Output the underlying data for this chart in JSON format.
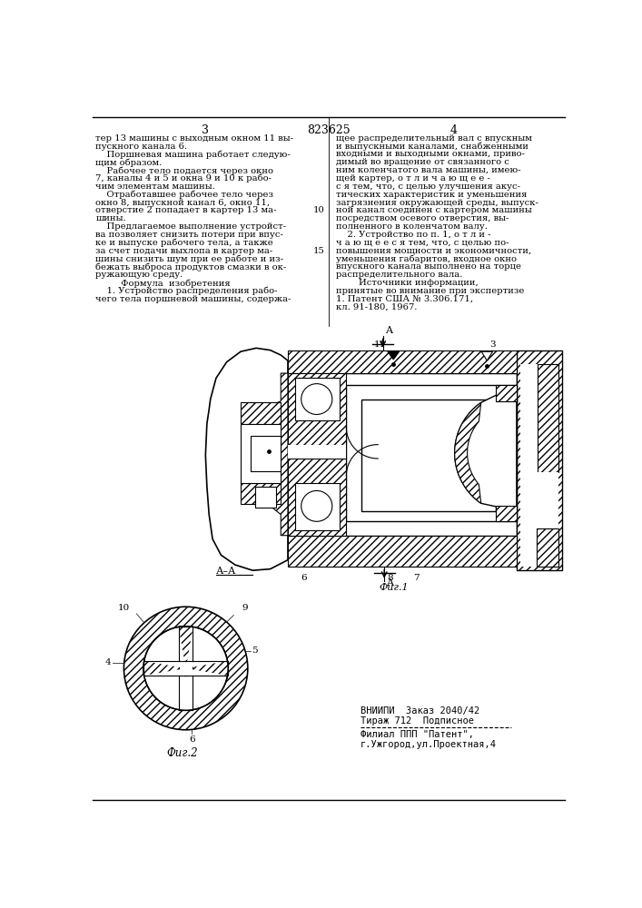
{
  "page_number_left": "3",
  "page_number_center": "823625",
  "page_number_right": "4",
  "bg_color": "#ffffff",
  "left_col": [
    "тер 13 машины с выходным окном 11 вы-",
    "пускного канала 6.",
    "    Поршневая машина работает следую-",
    "щим образом.",
    "    Рабочее тело подается через окно",
    "7, каналы 4 и 5 и окна 9 и 10 к рабо-",
    "чим элементам машины.",
    "    Отработавшее рабочее тело через",
    "окно 8, выпускной канал 6, окно 11,",
    "отверстие 2 попадает в картер 13 ма-",
    "шины.",
    "    Предлагаемое выполнение устройст-",
    "ва позволяет снизить потери при впус-",
    "ке и выпуске рабочего тела, а также",
    "за счет подачи выхлопа в картер ма-",
    "шины снизить шум при ее работе и из-",
    "бежать выброса продуктов смазки в ок-",
    "ружающую среду.",
    "         Формула  изобретения",
    "    1. Устройство распределения рабо-",
    "чего тела поршневой машины, содержа-"
  ],
  "right_col": [
    "щее распределительный вал с впускным",
    "и выпускными каналами, снабженными",
    "входными и выходными окнами, приво-",
    "димый во вращение от связанного с",
    "ним коленчатого вала машины, имею-",
    "щей картер, о т л и ч а ю щ е е -",
    "с я тем, что, с целью улучшения акус-",
    "тических характеристик и уменьшения",
    "загрязнения окружающей среды, выпуск-",
    "ной канал соединен с картером машины",
    "посредством осевого отверстия, вы-",
    "полненного в коленчатом валу.",
    "    2. Устройство по п. 1, о т л и -",
    "ч а ю щ е е с я тем, что, с целью по-",
    "повышения мощности и экономичности,",
    "уменьшения габаритов, входное окно",
    "впускного канала выполнено на торце",
    "распределительного вала.",
    "        Источники информации,",
    "принятые во внимание при экспертизе",
    "1. Патент США № 3.306.171,",
    "кл. 91-180, 1967."
  ],
  "footer1": "ВНИИПИ  Заказ 2040/42",
  "footer2": "Тираж 712  Подписное",
  "footer3": "Филиал ППП \"Патент\",",
  "footer4": "г.Ужгород,ул.Проектная,4"
}
